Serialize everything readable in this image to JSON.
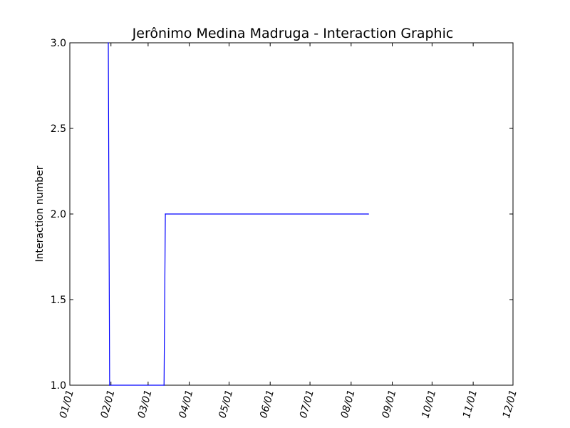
{
  "chart_data": {
    "type": "line",
    "title": "Jerônimo Medina Madruga - Interaction Graphic",
    "xlabel": "",
    "ylabel": "Interaction number",
    "x_tick_labels": [
      "01/01",
      "02/01",
      "03/01",
      "04/01",
      "05/01",
      "06/01",
      "07/01",
      "08/01",
      "09/01",
      "10/01",
      "11/01",
      "12/01"
    ],
    "y_tick_labels": [
      "1.0",
      "1.5",
      "2.0",
      "2.5",
      "3.0"
    ],
    "ylim": [
      1.0,
      3.0
    ],
    "grid": false,
    "series": [
      {
        "color": "#0000ff",
        "x": [
          "01/30",
          "01/31",
          "03/13",
          "03/14",
          "08/14"
        ],
        "y": [
          3.0,
          1.0,
          1.0,
          2.0,
          2.0
        ]
      }
    ]
  }
}
